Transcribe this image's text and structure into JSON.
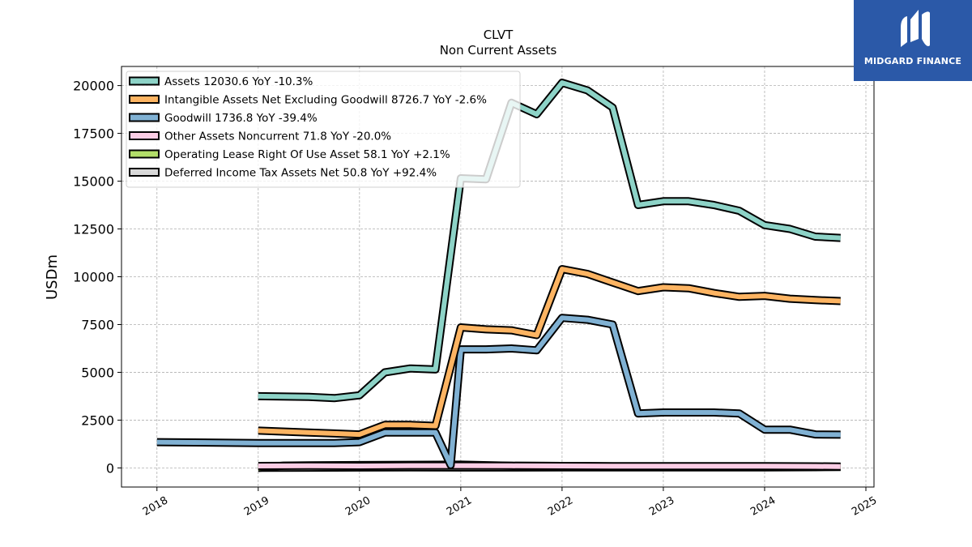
{
  "brand": {
    "name": "MIDGARD FINANCE",
    "bg_color": "#2b59a8"
  },
  "chart_data": {
    "type": "line",
    "title": "CLVT",
    "subtitle": "Non Current  Assets",
    "ylabel": "USDm",
    "xlabel": "",
    "ylim": [
      -1000,
      21000
    ],
    "xlim": [
      2017.65,
      2025.08
    ],
    "yticks": [
      0,
      2500,
      5000,
      7500,
      10000,
      12500,
      15000,
      17500,
      20000
    ],
    "xticks": [
      2018,
      2019,
      2020,
      2021,
      2022,
      2023,
      2024,
      2025
    ],
    "grid": true,
    "legend_position": "top-left",
    "series": [
      {
        "name": "Assets  12030.6 YoY -10.3%",
        "color": "#8dd3c7",
        "points": [
          [
            2019.0,
            3750
          ],
          [
            2019.5,
            3720
          ],
          [
            2019.75,
            3650
          ],
          [
            2020.0,
            3800
          ],
          [
            2020.25,
            5000
          ],
          [
            2020.5,
            5200
          ],
          [
            2020.75,
            5150
          ],
          [
            2021.0,
            15150
          ],
          [
            2021.25,
            15100
          ],
          [
            2021.5,
            19100
          ],
          [
            2021.75,
            18500
          ],
          [
            2022.0,
            20150
          ],
          [
            2022.25,
            19750
          ],
          [
            2022.5,
            18850
          ],
          [
            2022.75,
            13750
          ],
          [
            2023.0,
            13950
          ],
          [
            2023.25,
            13950
          ],
          [
            2023.5,
            13750
          ],
          [
            2023.75,
            13450
          ],
          [
            2024.0,
            12700
          ],
          [
            2024.25,
            12500
          ],
          [
            2024.5,
            12100
          ],
          [
            2024.75,
            12030.6
          ]
        ]
      },
      {
        "name": "Intangible Assets Net Excluding Goodwill  8726.7 YoY -2.6%",
        "color": "#fdb462",
        "points": [
          [
            2019.0,
            1950
          ],
          [
            2019.5,
            1850
          ],
          [
            2019.75,
            1800
          ],
          [
            2020.0,
            1750
          ],
          [
            2020.25,
            2250
          ],
          [
            2020.5,
            2250
          ],
          [
            2020.75,
            2200
          ],
          [
            2021.0,
            7350
          ],
          [
            2021.25,
            7250
          ],
          [
            2021.5,
            7200
          ],
          [
            2021.75,
            6950
          ],
          [
            2022.0,
            10400
          ],
          [
            2022.25,
            10150
          ],
          [
            2022.5,
            9700
          ],
          [
            2022.75,
            9250
          ],
          [
            2023.0,
            9450
          ],
          [
            2023.25,
            9400
          ],
          [
            2023.5,
            9150
          ],
          [
            2023.75,
            8950
          ],
          [
            2024.0,
            9000
          ],
          [
            2024.25,
            8850
          ],
          [
            2024.5,
            8780
          ],
          [
            2024.75,
            8726.7
          ]
        ]
      },
      {
        "name": "Goodwill  1736.8 YoY -39.4%",
        "color": "#80b1d3",
        "points": [
          [
            2018.0,
            1350
          ],
          [
            2019.0,
            1300
          ],
          [
            2019.5,
            1300
          ],
          [
            2019.75,
            1300
          ],
          [
            2020.0,
            1350
          ],
          [
            2020.25,
            1850
          ],
          [
            2020.5,
            1850
          ],
          [
            2020.75,
            1850
          ],
          [
            2020.9,
            150
          ],
          [
            2021.0,
            6200
          ],
          [
            2021.25,
            6200
          ],
          [
            2021.5,
            6250
          ],
          [
            2021.75,
            6150
          ],
          [
            2022.0,
            7850
          ],
          [
            2022.25,
            7750
          ],
          [
            2022.5,
            7500
          ],
          [
            2022.75,
            2850
          ],
          [
            2023.0,
            2900
          ],
          [
            2023.25,
            2900
          ],
          [
            2023.5,
            2900
          ],
          [
            2023.75,
            2850
          ],
          [
            2024.0,
            2000
          ],
          [
            2024.25,
            2000
          ],
          [
            2024.5,
            1750
          ],
          [
            2024.75,
            1736.8
          ]
        ]
      },
      {
        "name": "Other Assets Noncurrent  71.8 YoY -20.0%",
        "color": "#fccde5",
        "points": [
          [
            2019.0,
            100
          ],
          [
            2019.5,
            110
          ],
          [
            2020.0,
            100
          ],
          [
            2020.5,
            120
          ],
          [
            2021.0,
            120
          ],
          [
            2021.5,
            110
          ],
          [
            2022.0,
            100
          ],
          [
            2022.5,
            95
          ],
          [
            2023.0,
            90
          ],
          [
            2023.5,
            90
          ],
          [
            2024.0,
            90
          ],
          [
            2024.5,
            80
          ],
          [
            2024.75,
            71.8
          ]
        ]
      },
      {
        "name": "Operating Lease Right Of Use Asset  58.1 YoY +2.1%",
        "color": "#b3de69",
        "points": [
          [
            2019.0,
            0
          ],
          [
            2019.25,
            120
          ],
          [
            2019.5,
            130
          ],
          [
            2020.0,
            150
          ],
          [
            2020.5,
            160
          ],
          [
            2021.0,
            170
          ],
          [
            2021.5,
            110
          ],
          [
            2022.0,
            100
          ],
          [
            2022.5,
            80
          ],
          [
            2023.0,
            60
          ],
          [
            2023.5,
            60
          ],
          [
            2024.0,
            60
          ],
          [
            2024.5,
            58
          ],
          [
            2024.75,
            58.1
          ]
        ]
      },
      {
        "name": "Deferred Income Tax Assets Net  50.8 YoY +92.4%",
        "color": "#d9d9d9",
        "points": [
          [
            2019.0,
            10
          ],
          [
            2019.5,
            15
          ],
          [
            2020.0,
            20
          ],
          [
            2020.5,
            30
          ],
          [
            2021.0,
            20
          ],
          [
            2021.5,
            20
          ],
          [
            2022.0,
            25
          ],
          [
            2022.5,
            25
          ],
          [
            2023.0,
            30
          ],
          [
            2023.5,
            28
          ],
          [
            2024.0,
            30
          ],
          [
            2024.5,
            40
          ],
          [
            2024.75,
            50.8
          ]
        ]
      }
    ]
  }
}
